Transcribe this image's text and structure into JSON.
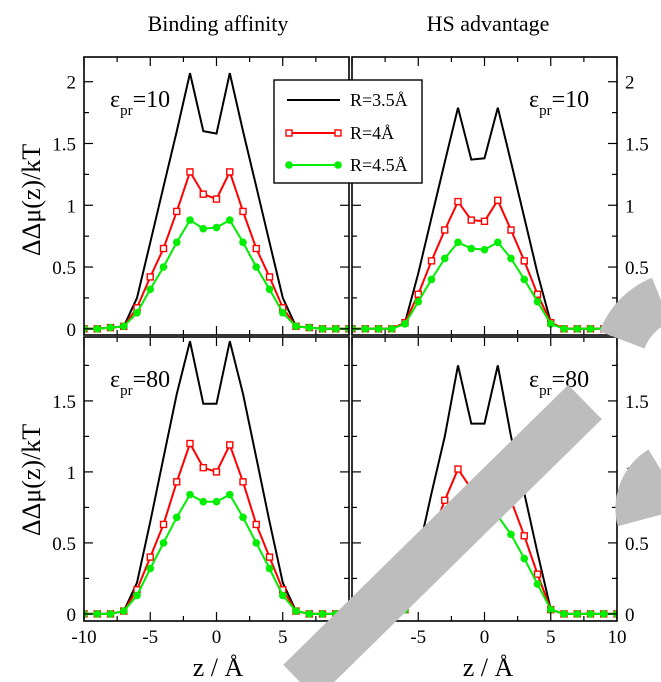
{
  "chart_data": {
    "type": "line",
    "column_titles": [
      "Binding affinity",
      "HS advantage"
    ],
    "ylabel": "ΔΔμ(z)/kT",
    "xlabel": "z / Å",
    "xlim": [
      -10,
      10
    ],
    "x_ticks": [
      "-10",
      "-5",
      "0",
      "5",
      "10"
    ],
    "legend": {
      "placement": "top-center",
      "entries": [
        "R=3.5Å",
        "R=4Å",
        "R=4.5Å"
      ]
    },
    "series_style": {
      "R=3.5Å": {
        "color": "#000000",
        "marker": "none"
      },
      "R=4Å": {
        "color": "#ff0000",
        "marker": "open-square"
      },
      "R=4.5Å": {
        "color": "#00ee00",
        "marker": "filled-circle"
      }
    },
    "panels": [
      {
        "id": "binding-eps10",
        "annotation": "ε_pr=10",
        "ylim": [
          -0.05,
          2.2
        ],
        "y_ticks": [
          "0",
          "0.5",
          "1",
          "1.5",
          "2"
        ],
        "x": [
          -10,
          -9,
          -8,
          -7,
          -6,
          -5,
          -4,
          -3,
          -2,
          -1,
          0,
          1,
          2,
          3,
          4,
          5,
          6,
          7,
          8,
          9,
          10
        ],
        "series": [
          {
            "name": "R=3.5Å",
            "values": [
              0,
              0,
              0.01,
              0.02,
              0.25,
              0.7,
              1.15,
              1.6,
              2.07,
              1.6,
              1.58,
              2.07,
              1.6,
              1.15,
              0.7,
              0.25,
              0.02,
              0.01,
              0,
              0,
              0
            ]
          },
          {
            "name": "R=4Å",
            "values": [
              0,
              0,
              0.01,
              0.02,
              0.17,
              0.42,
              0.65,
              0.95,
              1.27,
              1.09,
              1.05,
              1.27,
              0.95,
              0.65,
              0.42,
              0.17,
              0.02,
              0.01,
              0,
              0,
              0
            ]
          },
          {
            "name": "R=4.5Å",
            "values": [
              0,
              0,
              0.01,
              0.02,
              0.13,
              0.32,
              0.5,
              0.7,
              0.88,
              0.81,
              0.82,
              0.88,
              0.7,
              0.5,
              0.32,
              0.13,
              0.02,
              0.01,
              0,
              0,
              0
            ]
          }
        ]
      },
      {
        "id": "hs-eps10",
        "annotation": "ε_pr=10",
        "ylim": [
          -0.05,
          2.2
        ],
        "y_ticks": [
          "0",
          "0.5",
          "1",
          "1.5",
          "2"
        ],
        "x": [
          -10,
          -9,
          -8,
          -7,
          -6,
          -5,
          -4,
          -3,
          -2,
          -1,
          0,
          1,
          2,
          3,
          4,
          5,
          6,
          7,
          8,
          9,
          10
        ],
        "series": [
          {
            "name": "R=3.5Å",
            "values": [
              0,
              0,
              0,
              0,
              0.05,
              0.45,
              0.9,
              1.35,
              1.79,
              1.37,
              1.38,
              1.79,
              1.35,
              0.9,
              0.45,
              0.05,
              0,
              0,
              0,
              0,
              0
            ]
          },
          {
            "name": "R=4Å",
            "values": [
              0,
              0,
              0,
              0,
              0.05,
              0.28,
              0.55,
              0.8,
              1.03,
              0.88,
              0.87,
              1.04,
              0.8,
              0.55,
              0.28,
              0.05,
              0,
              0,
              0,
              0,
              0
            ]
          },
          {
            "name": "R=4.5Å",
            "values": [
              0,
              0,
              0,
              0,
              0.04,
              0.22,
              0.4,
              0.57,
              0.7,
              0.65,
              0.64,
              0.7,
              0.57,
              0.4,
              0.22,
              0.04,
              0,
              0,
              0,
              0,
              0
            ]
          }
        ]
      },
      {
        "id": "binding-eps80",
        "annotation": "ε_pr=80",
        "ylim": [
          -0.05,
          1.95
        ],
        "y_ticks": [
          "0",
          "0.5",
          "1",
          "1.5"
        ],
        "x": [
          -10,
          -9,
          -8,
          -7,
          -6,
          -5,
          -4,
          -3,
          -2,
          -1,
          0,
          1,
          2,
          3,
          4,
          5,
          6,
          7,
          8,
          9,
          10
        ],
        "series": [
          {
            "name": "R=3.5Å",
            "values": [
              0,
              0,
              0,
              0.02,
              0.22,
              0.65,
              1.1,
              1.55,
              1.92,
              1.48,
              1.48,
              1.92,
              1.55,
              1.1,
              0.65,
              0.22,
              0.02,
              0,
              0,
              0,
              0
            ]
          },
          {
            "name": "R=4Å",
            "values": [
              0,
              0,
              0,
              0.02,
              0.17,
              0.4,
              0.63,
              0.93,
              1.2,
              1.03,
              1.0,
              1.19,
              0.93,
              0.63,
              0.4,
              0.17,
              0.02,
              0,
              0,
              0,
              0
            ]
          },
          {
            "name": "R=4.5Å",
            "values": [
              0,
              0,
              0,
              0.02,
              0.13,
              0.32,
              0.5,
              0.68,
              0.84,
              0.79,
              0.79,
              0.84,
              0.68,
              0.5,
              0.32,
              0.13,
              0.02,
              0,
              0,
              0,
              0
            ]
          }
        ]
      },
      {
        "id": "hs-eps80",
        "annotation": "ε_pr=80",
        "ylim": [
          -0.05,
          1.95
        ],
        "y_ticks": [
          "0",
          "0.5",
          "1",
          "1.5"
        ],
        "x": [
          -10,
          -9,
          -8,
          -7,
          -6,
          -5,
          -4,
          -3,
          -2,
          -1,
          0,
          1,
          2,
          3,
          4,
          5,
          6,
          7,
          8,
          9,
          10
        ],
        "series": [
          {
            "name": "R=3.5Å",
            "values": [
              0,
              0,
              0,
              0,
              0.03,
              0.43,
              0.85,
              1.25,
              1.75,
              1.34,
              1.34,
              1.75,
              1.25,
              0.85,
              0.43,
              0.03,
              0,
              0,
              0,
              0,
              0
            ]
          },
          {
            "name": "R=4Å",
            "values": [
              0,
              0,
              0,
              0,
              0.03,
              0.28,
              0.55,
              0.8,
              1.02,
              0.88,
              0.86,
              1.03,
              0.8,
              0.55,
              0.28,
              0.03,
              0,
              0,
              0,
              0,
              0
            ]
          },
          {
            "name": "R=4.5Å",
            "values": [
              0,
              0,
              0,
              0,
              0.03,
              0.21,
              0.39,
              0.56,
              0.68,
              0.66,
              0.64,
              0.69,
              0.56,
              0.39,
              0.21,
              0.03,
              0,
              0,
              0,
              0,
              0
            ]
          }
        ]
      }
    ]
  }
}
